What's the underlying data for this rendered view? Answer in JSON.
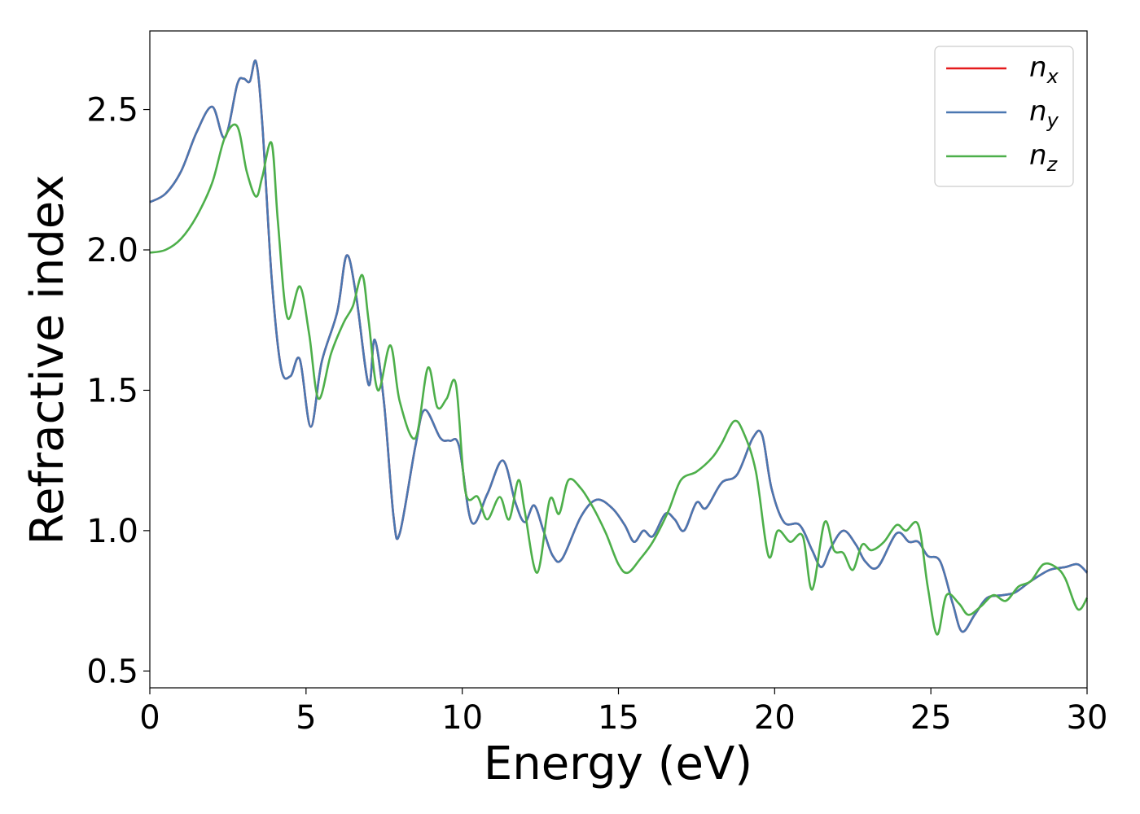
{
  "chart_data": {
    "type": "line",
    "xlabel": "Energy (eV)",
    "ylabel": "Refractive index",
    "xlim": [
      0,
      30
    ],
    "ylim": [
      0.44,
      2.78
    ],
    "xticks": [
      0,
      5,
      10,
      15,
      20,
      25,
      30
    ],
    "xtick_labels": [
      "0",
      "5",
      "10",
      "15",
      "20",
      "25",
      "30"
    ],
    "yticks": [
      0.5,
      1.0,
      1.5,
      2.0,
      2.5
    ],
    "ytick_labels": [
      "0.5",
      "1.0",
      "1.5",
      "2.0",
      "2.5"
    ],
    "grid": false,
    "legend_position": "top-right",
    "series": [
      {
        "name": "n_x",
        "label_base": "n",
        "label_sub": "x",
        "color": "#e41a1c",
        "x": [
          0,
          0.5,
          1,
          1.5,
          2,
          2.4,
          2.8,
          3.0,
          3.2,
          3.4,
          3.6,
          3.9,
          4.2,
          4.5,
          4.8,
          5.15,
          5.5,
          6.0,
          6.3,
          6.6,
          7.0,
          7.2,
          7.5,
          7.8,
          8.0,
          8.5,
          8.8,
          9.3,
          9.6,
          9.9,
          10.3,
          10.8,
          11.3,
          11.7,
          12.0,
          12.3,
          12.6,
          12.9,
          13.2,
          13.8,
          14.3,
          14.8,
          15.2,
          15.5,
          15.8,
          16.1,
          16.5,
          16.8,
          17.1,
          17.5,
          17.8,
          18.3,
          18.8,
          19.3,
          19.6,
          19.9,
          20.3,
          20.8,
          21.2,
          21.5,
          21.8,
          22.2,
          22.6,
          22.9,
          23.3,
          23.9,
          24.3,
          24.6,
          24.9,
          25.3,
          25.7,
          26.0,
          26.4,
          26.8,
          27.3,
          27.7,
          28.2,
          28.8,
          29.3,
          29.7,
          30.0
        ],
        "y": [
          2.17,
          2.2,
          2.28,
          2.42,
          2.51,
          2.4,
          2.59,
          2.61,
          2.6,
          2.67,
          2.45,
          1.9,
          1.58,
          1.55,
          1.61,
          1.37,
          1.6,
          1.78,
          1.98,
          1.84,
          1.52,
          1.68,
          1.45,
          1.05,
          0.99,
          1.3,
          1.43,
          1.33,
          1.32,
          1.3,
          1.03,
          1.13,
          1.25,
          1.1,
          1.03,
          1.09,
          1.0,
          0.91,
          0.9,
          1.05,
          1.11,
          1.08,
          1.02,
          0.96,
          1.0,
          0.98,
          1.06,
          1.04,
          1.0,
          1.1,
          1.08,
          1.17,
          1.2,
          1.33,
          1.34,
          1.15,
          1.03,
          1.02,
          0.93,
          0.87,
          0.94,
          1.0,
          0.95,
          0.89,
          0.87,
          0.99,
          0.96,
          0.96,
          0.91,
          0.89,
          0.74,
          0.64,
          0.7,
          0.76,
          0.77,
          0.78,
          0.82,
          0.86,
          0.87,
          0.88,
          0.85
        ]
      },
      {
        "name": "n_y",
        "label_base": "n",
        "label_sub": "y",
        "color": "#4a77b1",
        "x": [
          0,
          0.5,
          1,
          1.5,
          2,
          2.4,
          2.8,
          3.0,
          3.2,
          3.4,
          3.6,
          3.9,
          4.2,
          4.5,
          4.8,
          5.15,
          5.5,
          6.0,
          6.3,
          6.6,
          7.0,
          7.2,
          7.5,
          7.8,
          8.0,
          8.5,
          8.8,
          9.3,
          9.6,
          9.9,
          10.3,
          10.8,
          11.3,
          11.7,
          12.0,
          12.3,
          12.6,
          12.9,
          13.2,
          13.8,
          14.3,
          14.8,
          15.2,
          15.5,
          15.8,
          16.1,
          16.5,
          16.8,
          17.1,
          17.5,
          17.8,
          18.3,
          18.8,
          19.3,
          19.6,
          19.9,
          20.3,
          20.8,
          21.2,
          21.5,
          21.8,
          22.2,
          22.6,
          22.9,
          23.3,
          23.9,
          24.3,
          24.6,
          24.9,
          25.3,
          25.7,
          26.0,
          26.4,
          26.8,
          27.3,
          27.7,
          28.2,
          28.8,
          29.3,
          29.7,
          30.0
        ],
        "y": [
          2.17,
          2.2,
          2.28,
          2.42,
          2.51,
          2.4,
          2.59,
          2.61,
          2.6,
          2.67,
          2.45,
          1.9,
          1.58,
          1.55,
          1.61,
          1.37,
          1.6,
          1.78,
          1.98,
          1.84,
          1.52,
          1.68,
          1.45,
          1.05,
          0.99,
          1.3,
          1.43,
          1.33,
          1.32,
          1.3,
          1.03,
          1.13,
          1.25,
          1.1,
          1.03,
          1.09,
          1.0,
          0.91,
          0.9,
          1.05,
          1.11,
          1.08,
          1.02,
          0.96,
          1.0,
          0.98,
          1.06,
          1.04,
          1.0,
          1.1,
          1.08,
          1.17,
          1.2,
          1.33,
          1.34,
          1.15,
          1.03,
          1.02,
          0.93,
          0.87,
          0.94,
          1.0,
          0.95,
          0.89,
          0.87,
          0.99,
          0.96,
          0.96,
          0.91,
          0.89,
          0.74,
          0.64,
          0.7,
          0.76,
          0.77,
          0.78,
          0.82,
          0.86,
          0.87,
          0.88,
          0.85
        ]
      },
      {
        "name": "n_z",
        "label_base": "n",
        "label_sub": "z",
        "color": "#4daf4a",
        "x": [
          0,
          0.5,
          1,
          1.5,
          2,
          2.4,
          2.8,
          3.1,
          3.4,
          3.6,
          3.9,
          4.1,
          4.4,
          4.8,
          5.1,
          5.4,
          5.8,
          6.2,
          6.5,
          6.8,
          7.0,
          7.3,
          7.7,
          8.0,
          8.5,
          8.9,
          9.2,
          9.5,
          9.8,
          10.1,
          10.5,
          10.8,
          11.2,
          11.5,
          11.8,
          12.0,
          12.4,
          12.8,
          13.1,
          13.4,
          13.8,
          14.2,
          14.6,
          15.0,
          15.3,
          15.7,
          16.1,
          16.6,
          17.0,
          17.5,
          18.0,
          18.3,
          18.7,
          19.0,
          19.4,
          19.8,
          20.1,
          20.5,
          20.9,
          21.2,
          21.6,
          21.9,
          22.2,
          22.5,
          22.8,
          23.1,
          23.5,
          23.9,
          24.2,
          24.6,
          24.9,
          25.2,
          25.5,
          25.9,
          26.2,
          26.6,
          27.0,
          27.4,
          27.8,
          28.2,
          28.6,
          29.0,
          29.3,
          29.7,
          30.0
        ],
        "y": [
          1.99,
          2.0,
          2.04,
          2.12,
          2.24,
          2.4,
          2.44,
          2.28,
          2.19,
          2.26,
          2.38,
          2.1,
          1.76,
          1.87,
          1.7,
          1.47,
          1.63,
          1.74,
          1.8,
          1.91,
          1.75,
          1.5,
          1.66,
          1.46,
          1.33,
          1.58,
          1.44,
          1.47,
          1.52,
          1.14,
          1.12,
          1.04,
          1.12,
          1.04,
          1.18,
          1.07,
          0.85,
          1.11,
          1.06,
          1.18,
          1.15,
          1.08,
          0.99,
          0.88,
          0.85,
          0.9,
          0.96,
          1.07,
          1.18,
          1.21,
          1.26,
          1.31,
          1.39,
          1.35,
          1.21,
          0.91,
          1.0,
          0.96,
          0.98,
          0.79,
          1.03,
          0.93,
          0.92,
          0.86,
          0.95,
          0.93,
          0.96,
          1.02,
          1.0,
          1.02,
          0.8,
          0.63,
          0.77,
          0.74,
          0.7,
          0.73,
          0.77,
          0.75,
          0.8,
          0.82,
          0.88,
          0.87,
          0.83,
          0.72,
          0.76
        ]
      }
    ]
  }
}
